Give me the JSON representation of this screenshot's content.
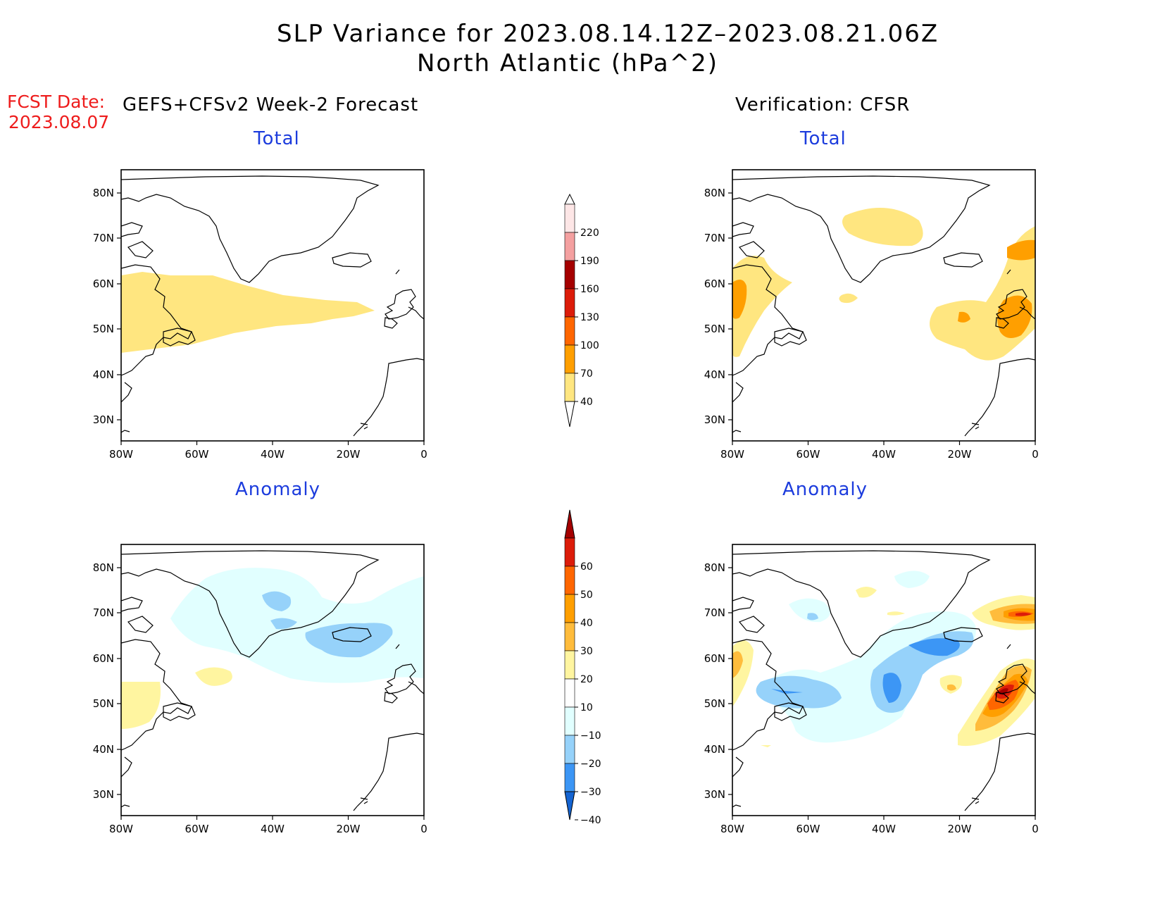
{
  "header": {
    "title_line1": "SLP Variance for 2023.08.14.12Z–2023.08.21.06Z",
    "title_line2": "North Atlantic (hPa^2)",
    "fcst_label": "FCST Date:",
    "fcst_date": "2023.08.07",
    "left_heading": "GEFS+CFSv2 Week-2 Forecast",
    "right_heading": "Verification: CFSR"
  },
  "panels": [
    {
      "id": "fcst-total",
      "title": "Total"
    },
    {
      "id": "verif-total",
      "title": "Total"
    },
    {
      "id": "fcst-anomaly",
      "title": "Anomaly"
    },
    {
      "id": "verif-anomaly",
      "title": "Anomaly"
    }
  ],
  "axes": {
    "lon_ticks": [
      "80W",
      "60W",
      "40W",
      "20W",
      "0"
    ],
    "lat_ticks": [
      "80N",
      "70N",
      "60N",
      "50N",
      "40N",
      "30N"
    ]
  },
  "colorbars": {
    "total": {
      "levels": [
        "220",
        "190",
        "160",
        "130",
        "100",
        "70",
        "40"
      ],
      "colors": [
        "#fde6e6",
        "#f4a0a0",
        "#a50000",
        "#dc1c0a",
        "#ff6600",
        "#ff9f00",
        "#ffe680"
      ]
    },
    "anomaly": {
      "levels": [
        "60",
        "50",
        "40",
        "30",
        "20",
        "10",
        "−10",
        "−20",
        "−30",
        "−40"
      ],
      "colors": [
        "#a50000",
        "#dc1c0a",
        "#ff6600",
        "#ff9f00",
        "#ffbc3c",
        "#fff5a0",
        "#ffffff",
        "#e1ffff",
        "#96d2fa",
        "#3c96f5",
        "#1464d2"
      ]
    }
  },
  "colors": {
    "fcst_text": "#ee1c1c",
    "panel_title": "#1c3cdd"
  }
}
